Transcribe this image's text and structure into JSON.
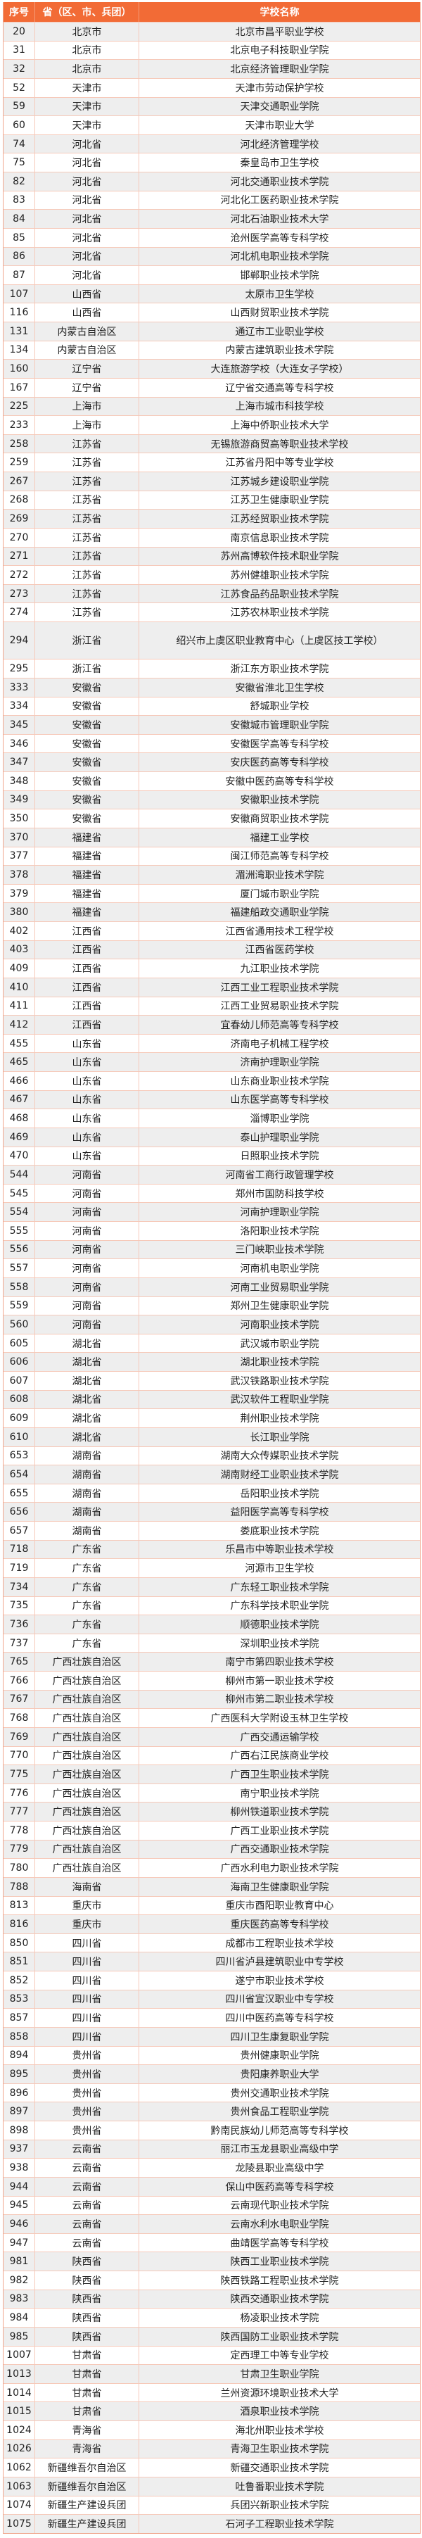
{
  "header": {
    "no": "序号",
    "province": "省（区、市、兵团）",
    "school": "学校名称"
  },
  "colors": {
    "header_bg": "#f26b36",
    "border": "#f6c9b9",
    "alt_row": "#eeeeee"
  },
  "rows": [
    [
      "20",
      "北京市",
      "北京市昌平职业学校"
    ],
    [
      "31",
      "北京市",
      "北京电子科技职业学院"
    ],
    [
      "32",
      "北京市",
      "北京经济管理职业学院"
    ],
    [
      "52",
      "天津市",
      "天津市劳动保护学校"
    ],
    [
      "59",
      "天津市",
      "天津交通职业学院"
    ],
    [
      "60",
      "天津市",
      "天津市职业大学"
    ],
    [
      "74",
      "河北省",
      "河北经济管理学校"
    ],
    [
      "75",
      "河北省",
      "秦皇岛市卫生学校"
    ],
    [
      "82",
      "河北省",
      "河北交通职业技术学院"
    ],
    [
      "83",
      "河北省",
      "河北化工医药职业技术学院"
    ],
    [
      "84",
      "河北省",
      "河北石油职业技术大学"
    ],
    [
      "85",
      "河北省",
      "沧州医学高等专科学校"
    ],
    [
      "86",
      "河北省",
      "河北机电职业技术学院"
    ],
    [
      "87",
      "河北省",
      "邯郸职业技术学院"
    ],
    [
      "107",
      "山西省",
      "太原市卫生学校"
    ],
    [
      "116",
      "山西省",
      "山西财贸职业技术学院"
    ],
    [
      "131",
      "内蒙古自治区",
      "通辽市工业职业学校"
    ],
    [
      "134",
      "内蒙古自治区",
      "内蒙古建筑职业技术学院"
    ],
    [
      "160",
      "辽宁省",
      "大连旅游学校（大连女子学校）"
    ],
    [
      "167",
      "辽宁省",
      "辽宁省交通高等专科学校"
    ],
    [
      "225",
      "上海市",
      "上海市城市科技学校"
    ],
    [
      "233",
      "上海市",
      "上海中侨职业技术大学"
    ],
    [
      "258",
      "江苏省",
      "无锡旅游商贸高等职业技术学校"
    ],
    [
      "259",
      "江苏省",
      "江苏省丹阳中等专业学校"
    ],
    [
      "267",
      "江苏省",
      "江苏城乡建设职业学院"
    ],
    [
      "268",
      "江苏省",
      "江苏卫生健康职业学院"
    ],
    [
      "269",
      "江苏省",
      "江苏经贸职业技术学院"
    ],
    [
      "270",
      "江苏省",
      "南京信息职业技术学院"
    ],
    [
      "271",
      "江苏省",
      "苏州高博软件技术职业学院"
    ],
    [
      "272",
      "江苏省",
      "苏州健雄职业技术学院"
    ],
    [
      "273",
      "江苏省",
      "江苏食品药品职业技术学院"
    ],
    [
      "274",
      "江苏省",
      "江苏农林职业技术学院"
    ],
    [
      "294",
      "浙江省",
      "绍兴市上虞区职业教育中心（上虞区技工学校）"
    ],
    [
      "295",
      "浙江省",
      "浙江东方职业技术学院"
    ],
    [
      "333",
      "安徽省",
      "安徽省淮北卫生学校"
    ],
    [
      "334",
      "安徽省",
      "舒城职业学校"
    ],
    [
      "345",
      "安徽省",
      "安徽城市管理职业学院"
    ],
    [
      "346",
      "安徽省",
      "安徽医学高等专科学校"
    ],
    [
      "347",
      "安徽省",
      "安庆医药高等专科学校"
    ],
    [
      "348",
      "安徽省",
      "安徽中医药高等专科学校"
    ],
    [
      "349",
      "安徽省",
      "安徽职业技术学院"
    ],
    [
      "350",
      "安徽省",
      "安徽商贸职业技术学院"
    ],
    [
      "370",
      "福建省",
      "福建工业学校"
    ],
    [
      "377",
      "福建省",
      "闽江师范高等专科学校"
    ],
    [
      "378",
      "福建省",
      "湄洲湾职业技术学院"
    ],
    [
      "379",
      "福建省",
      "厦门城市职业学院"
    ],
    [
      "380",
      "福建省",
      "福建船政交通职业学院"
    ],
    [
      "402",
      "江西省",
      "江西省通用技术工程学校"
    ],
    [
      "403",
      "江西省",
      "江西省医药学校"
    ],
    [
      "409",
      "江西省",
      "九江职业技术学院"
    ],
    [
      "410",
      "江西省",
      "江西工业工程职业技术学院"
    ],
    [
      "411",
      "江西省",
      "江西工业贸易职业技术学院"
    ],
    [
      "412",
      "江西省",
      "宜春幼儿师范高等专科学校"
    ],
    [
      "455",
      "山东省",
      "济南电子机械工程学校"
    ],
    [
      "465",
      "山东省",
      "济南护理职业学院"
    ],
    [
      "466",
      "山东省",
      "山东商业职业技术学院"
    ],
    [
      "467",
      "山东省",
      "山东医学高等专科学校"
    ],
    [
      "468",
      "山东省",
      "淄博职业学院"
    ],
    [
      "469",
      "山东省",
      "泰山护理职业学院"
    ],
    [
      "470",
      "山东省",
      "日照职业技术学院"
    ],
    [
      "544",
      "河南省",
      "河南省工商行政管理学校"
    ],
    [
      "545",
      "河南省",
      "郑州市国防科技学校"
    ],
    [
      "554",
      "河南省",
      "河南护理职业学院"
    ],
    [
      "555",
      "河南省",
      "洛阳职业技术学院"
    ],
    [
      "556",
      "河南省",
      "三门峡职业技术学院"
    ],
    [
      "557",
      "河南省",
      "河南机电职业学院"
    ],
    [
      "558",
      "河南省",
      "河南工业贸易职业学院"
    ],
    [
      "559",
      "河南省",
      "郑州卫生健康职业学院"
    ],
    [
      "560",
      "河南省",
      "河南职业技术学院"
    ],
    [
      "605",
      "湖北省",
      "武汉城市职业学院"
    ],
    [
      "606",
      "湖北省",
      "湖北职业技术学院"
    ],
    [
      "607",
      "湖北省",
      "武汉铁路职业技术学院"
    ],
    [
      "608",
      "湖北省",
      "武汉软件工程职业学院"
    ],
    [
      "609",
      "湖北省",
      "荆州职业技术学院"
    ],
    [
      "610",
      "湖北省",
      "长江职业学院"
    ],
    [
      "653",
      "湖南省",
      "湖南大众传媒职业技术学院"
    ],
    [
      "654",
      "湖南省",
      "湖南财经工业职业技术学院"
    ],
    [
      "655",
      "湖南省",
      "岳阳职业技术学院"
    ],
    [
      "656",
      "湖南省",
      "益阳医学高等专科学校"
    ],
    [
      "657",
      "湖南省",
      "娄底职业技术学院"
    ],
    [
      "718",
      "广东省",
      "乐昌市中等职业技术学校"
    ],
    [
      "719",
      "广东省",
      "河源市卫生学校"
    ],
    [
      "734",
      "广东省",
      "广东轻工职业技术学院"
    ],
    [
      "735",
      "广东省",
      "广东科学技术职业学院"
    ],
    [
      "736",
      "广东省",
      "顺德职业技术学院"
    ],
    [
      "737",
      "广东省",
      "深圳职业技术学院"
    ],
    [
      "765",
      "广西壮族自治区",
      "南宁市第四职业技术学校"
    ],
    [
      "766",
      "广西壮族自治区",
      "柳州市第一职业技术学校"
    ],
    [
      "767",
      "广西壮族自治区",
      "柳州市第二职业技术学校"
    ],
    [
      "768",
      "广西壮族自治区",
      "广西医科大学附设玉林卫生学校"
    ],
    [
      "769",
      "广西壮族自治区",
      "广西交通运输学校"
    ],
    [
      "770",
      "广西壮族自治区",
      "广西右江民族商业学校"
    ],
    [
      "775",
      "广西壮族自治区",
      "广西卫生职业技术学院"
    ],
    [
      "776",
      "广西壮族自治区",
      "南宁职业技术学院"
    ],
    [
      "777",
      "广西壮族自治区",
      "柳州铁道职业技术学院"
    ],
    [
      "778",
      "广西壮族自治区",
      "广西工业职业技术学院"
    ],
    [
      "779",
      "广西壮族自治区",
      "广西交通职业技术学院"
    ],
    [
      "780",
      "广西壮族自治区",
      "广西水利电力职业技术学院"
    ],
    [
      "788",
      "海南省",
      "海南卫生健康职业学院"
    ],
    [
      "813",
      "重庆市",
      "重庆市酉阳职业教育中心"
    ],
    [
      "816",
      "重庆市",
      "重庆医药高等专科学校"
    ],
    [
      "850",
      "四川省",
      "成都市工程职业技术学校"
    ],
    [
      "851",
      "四川省",
      "四川省泸县建筑职业中专学校"
    ],
    [
      "852",
      "四川省",
      "遂宁市职业技术学校"
    ],
    [
      "853",
      "四川省",
      "四川省宣汉职业中专学校"
    ],
    [
      "857",
      "四川省",
      "四川中医药高等专科学校"
    ],
    [
      "858",
      "四川省",
      "四川卫生康复职业学院"
    ],
    [
      "894",
      "贵州省",
      "贵州健康职业学院"
    ],
    [
      "895",
      "贵州省",
      "贵阳康养职业大学"
    ],
    [
      "896",
      "贵州省",
      "贵州交通职业技术学院"
    ],
    [
      "897",
      "贵州省",
      "贵州食品工程职业学院"
    ],
    [
      "898",
      "贵州省",
      "黔南民族幼儿师范高等专科学校"
    ],
    [
      "937",
      "云南省",
      "丽江市玉龙县职业高级中学"
    ],
    [
      "938",
      "云南省",
      "龙陵县职业高级中学"
    ],
    [
      "944",
      "云南省",
      "保山中医药高等专科学校"
    ],
    [
      "945",
      "云南省",
      "云南现代职业技术学院"
    ],
    [
      "946",
      "云南省",
      "云南水利水电职业学院"
    ],
    [
      "947",
      "云南省",
      "曲靖医学高等专科学校"
    ],
    [
      "981",
      "陕西省",
      "陕西工业职业技术学院"
    ],
    [
      "982",
      "陕西省",
      "陕西铁路工程职业技术学院"
    ],
    [
      "983",
      "陕西省",
      "陕西交通职业技术学院"
    ],
    [
      "984",
      "陕西省",
      "杨凌职业技术学院"
    ],
    [
      "985",
      "陕西省",
      "陕西国防工业职业技术学院"
    ],
    [
      "1007",
      "甘肃省",
      "定西理工中等专业学校"
    ],
    [
      "1013",
      "甘肃省",
      "甘肃卫生职业学院"
    ],
    [
      "1014",
      "甘肃省",
      "兰州资源环境职业技术大学"
    ],
    [
      "1015",
      "甘肃省",
      "酒泉职业技术学院"
    ],
    [
      "1024",
      "青海省",
      "海北州职业技术学校"
    ],
    [
      "1026",
      "青海省",
      "青海卫生职业技术学院"
    ],
    [
      "1062",
      "新疆维吾尔自治区",
      "新疆交通职业技术学院"
    ],
    [
      "1063",
      "新疆维吾尔自治区",
      "吐鲁番职业技术学院"
    ],
    [
      "1074",
      "新疆生产建设兵团",
      "兵团兴新职业技术学院"
    ],
    [
      "1075",
      "新疆生产建设兵团",
      "石河子工程职业技术学院"
    ]
  ]
}
